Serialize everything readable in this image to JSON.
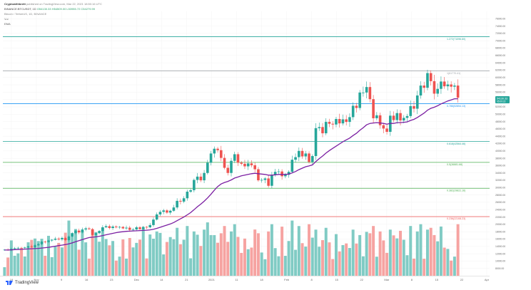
{
  "header": {
    "author": "Cryptowithbrett",
    "published": "published on TradingView.com, Mar 22, 2021 18:50:16 UTC",
    "symbol": "BINANCE:BTCUSDT, 1D",
    "ohlc": "O54130.33  H54509.00  L53955.72  C54279.99",
    "pair": "Bitcoin / TetherUS, 1D, BINANCE",
    "vol_label": "Vol",
    "ema_label": "EMA"
  },
  "price_badge": {
    "value": "54130.33",
    "sub": "05:09:22",
    "color": "#26a69a"
  },
  "fib_levels": [
    {
      "label": "1.272(71096.60)",
      "price": 71096.6,
      "color": "#26a69a"
    },
    {
      "label": "1(61770.41)",
      "price": 61770.41,
      "color": "#9aa0a6"
    },
    {
      "label": "0.786(52854.13)",
      "price": 52854.13,
      "color": "#2196f3"
    },
    {
      "label": "0.618(42564.46)",
      "price": 42564.46,
      "color": "#26a69a"
    },
    {
      "label": "0.5(36881.66)",
      "price": 36881.66,
      "color": "#4caf50"
    },
    {
      "label": "0.382(29822.16)",
      "price": 29822.16,
      "color": "#4caf50"
    },
    {
      "label": "0.236(22108.23)",
      "price": 22108.23,
      "color": "#ef5350"
    }
  ],
  "logo": {
    "text": "TradingView",
    "icon": "tradingview-logo-icon"
  },
  "colors": {
    "up": "#26a69a",
    "down": "#ef5350",
    "ema": "#7b1fa2",
    "vol_up": "#80cbc4",
    "vol_down": "#f6a3a1"
  },
  "chart_data": {
    "type": "candlestick",
    "title": "Bitcoin / TetherUS, 1D, BINANCE",
    "ylim": [
      6000,
      78000
    ],
    "y_ticks": [
      "76000.00",
      "74000.00",
      "72000.00",
      "70000.00",
      "68000.00",
      "66000.00",
      "64000.00",
      "62000.00",
      "60000.00",
      "58000.00",
      "56000.00",
      "54000.00",
      "52000.00",
      "50000.00",
      "48000.00",
      "46000.00",
      "44000.00",
      "42000.00",
      "40000.00",
      "38000.00",
      "36000.00",
      "34000.00",
      "32000.00",
      "30000.00",
      "28000.00",
      "26000.00",
      "24000.00",
      "22000.00",
      "20000.00",
      "18000.00",
      "16000.00",
      "14000.00",
      "12000.00",
      "10000.00",
      "8000.00"
    ],
    "x_ticks": [
      "19",
      "Nov",
      "9",
      "16",
      "23",
      "Dec",
      "14",
      "21",
      "2021",
      "11",
      "18",
      "Feb",
      "8",
      "15",
      "22",
      "Mar",
      "8",
      "15",
      "22",
      "Apr"
    ],
    "price": [
      13100,
      13050,
      13300,
      13500,
      13600,
      13550,
      13700,
      14000,
      13800,
      14300,
      14600,
      15300,
      15200,
      15600,
      15800,
      16100,
      15900,
      16300,
      15700,
      16700,
      17600,
      18300,
      17800,
      18600,
      18900,
      18700,
      17100,
      17600,
      18200,
      19200,
      19500,
      19000,
      19400,
      19200,
      19300,
      18900,
      19100,
      18500,
      18600,
      19200,
      18700,
      19300,
      19200,
      19800,
      21300,
      22700,
      23400,
      23800,
      23200,
      23700,
      24600,
      26400,
      26200,
      27100,
      28900,
      29300,
      32100,
      33000,
      32000,
      34000,
      36800,
      39300,
      40600,
      40200,
      38100,
      35400,
      34000,
      37300,
      39100,
      36800,
      36500,
      35800,
      36600,
      36100,
      35000,
      32000,
      32100,
      32500,
      30500,
      33400,
      34300,
      34400,
      33100,
      33500,
      34300,
      37600,
      38300,
      40000,
      38500,
      39300,
      37000,
      38600,
      46200,
      46500,
      44800,
      47900,
      47400,
      47200,
      48700,
      47500,
      48600,
      47900,
      49200,
      52300,
      51700,
      55900,
      55900,
      57400,
      54100,
      48900,
      49700,
      47000,
      46100,
      45200,
      49600,
      48400,
      50300,
      48300,
      49000,
      49500,
      52200,
      51500,
      55100,
      57800,
      57200,
      61200,
      59000,
      55600,
      56900,
      58900,
      57600,
      58100,
      57500,
      57800,
      54500
    ],
    "ema": [
      13000,
      13000,
      13050,
      13100,
      13150,
      13200,
      13250,
      13300,
      13350,
      13400,
      13450,
      13550,
      13650,
      13750,
      13900,
      14050,
      14200,
      14350,
      14500,
      14700,
      14950,
      15250,
      15550,
      15850,
      16150,
      16400,
      16500,
      16600,
      16750,
      16950,
      17150,
      17350,
      17550,
      17750,
      17900,
      18000,
      18100,
      18150,
      18200,
      18250,
      18300,
      18350,
      18400,
      18500,
      18650,
      18900,
      19200,
      19500,
      19800,
      20100,
      20500,
      21000,
      21500,
      22000,
      22600,
      23200,
      24000,
      24800,
      25500,
      26300,
      27200,
      28200,
      29300,
      30300,
      31000,
      31400,
      31700,
      32100,
      32600,
      32900,
      33200,
      33400,
      33600,
      33800,
      33900,
      33800,
      33700,
      33600,
      33400,
      33400,
      33500,
      33600,
      33600,
      33600,
      33700,
      34000,
      34400,
      34900,
      35300,
      35700,
      35900,
      36200,
      37100,
      37900,
      38600,
      39400,
      40100,
      40700,
      41300,
      41900,
      42500,
      43000,
      43500,
      44200,
      44800,
      45600,
      46300,
      47100,
      47500,
      47600,
      47700,
      47600,
      47500,
      47300,
      47500,
      47500,
      47700,
      47700,
      47800,
      47900,
      48300,
      48600,
      49100,
      49700,
      50300,
      51100,
      51600,
      51900,
      52300,
      52800,
      53200,
      53600,
      53900,
      54200,
      54200
    ]
  }
}
